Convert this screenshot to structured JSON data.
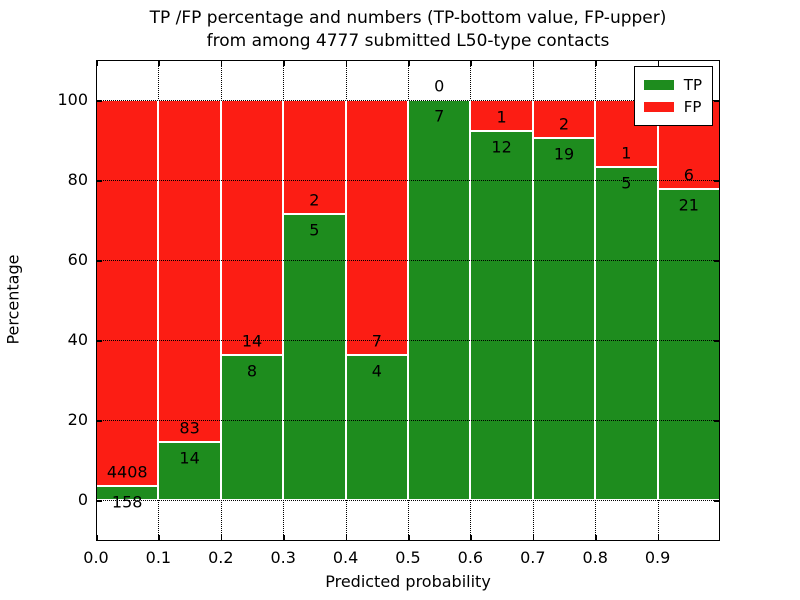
{
  "title": {
    "line1": "TP /FP percentage and numbers (TP-bottom value, FP-upper)",
    "line2": "from among 4777 submitted L50-type contacts"
  },
  "axes": {
    "xlabel": "Predicted probability",
    "ylabel": "Percentage",
    "x_tick_labels": [
      "0.0",
      "0.1",
      "0.2",
      "0.3",
      "0.4",
      "0.5",
      "0.6",
      "0.7",
      "0.8",
      "0.9"
    ],
    "y_tick_labels": [
      "0",
      "20",
      "40",
      "60",
      "80",
      "100"
    ],
    "y_tick_values": [
      0,
      20,
      40,
      60,
      80,
      100
    ],
    "xlim": [
      0.0,
      1.0
    ],
    "ylim": [
      -10,
      110
    ],
    "grid": "dotted"
  },
  "legend": {
    "position": "upper right",
    "items": [
      {
        "label": "TP",
        "color": "#1e8c1e"
      },
      {
        "label": "FP",
        "color": "#fc1d14"
      }
    ]
  },
  "colors": {
    "tp": "#1e8c1e",
    "fp": "#fc1d14",
    "bar_edge": "#ffffff",
    "text": "#000000"
  },
  "chart_data": {
    "type": "bar",
    "stacked": true,
    "unit": "percent of bin total",
    "total_contacts": 4777,
    "categories": [
      "0.0-0.1",
      "0.1-0.2",
      "0.2-0.3",
      "0.3-0.4",
      "0.4-0.5",
      "0.5-0.6",
      "0.6-0.7",
      "0.7-0.8",
      "0.8-0.9",
      "0.9-1.0"
    ],
    "bins": [
      {
        "x0": 0.0,
        "x1": 0.1,
        "tp": 158,
        "fp": 4408,
        "tp_pct": 3.46,
        "fp_pct": 96.54
      },
      {
        "x0": 0.1,
        "x1": 0.2,
        "tp": 14,
        "fp": 83,
        "tp_pct": 14.43,
        "fp_pct": 85.57
      },
      {
        "x0": 0.2,
        "x1": 0.3,
        "tp": 8,
        "fp": 14,
        "tp_pct": 36.36,
        "fp_pct": 63.64
      },
      {
        "x0": 0.3,
        "x1": 0.4,
        "tp": 5,
        "fp": 2,
        "tp_pct": 71.43,
        "fp_pct": 28.57
      },
      {
        "x0": 0.4,
        "x1": 0.5,
        "tp": 4,
        "fp": 7,
        "tp_pct": 36.36,
        "fp_pct": 63.64
      },
      {
        "x0": 0.5,
        "x1": 0.6,
        "tp": 7,
        "fp": 0,
        "tp_pct": 100.0,
        "fp_pct": 0.0
      },
      {
        "x0": 0.6,
        "x1": 0.7,
        "tp": 12,
        "fp": 1,
        "tp_pct": 92.31,
        "fp_pct": 7.69
      },
      {
        "x0": 0.7,
        "x1": 0.8,
        "tp": 19,
        "fp": 2,
        "tp_pct": 90.48,
        "fp_pct": 9.52
      },
      {
        "x0": 0.8,
        "x1": 0.9,
        "tp": 5,
        "fp": 1,
        "tp_pct": 83.33,
        "fp_pct": 16.67
      },
      {
        "x0": 0.9,
        "x1": 1.0,
        "tp": 21,
        "fp": 6,
        "tp_pct": 77.78,
        "fp_pct": 22.22
      }
    ],
    "title": "TP /FP percentage and numbers (TP-bottom value, FP-upper) from among 4777 submitted L50-type contacts",
    "xlabel": "Predicted probability",
    "ylabel": "Percentage"
  }
}
